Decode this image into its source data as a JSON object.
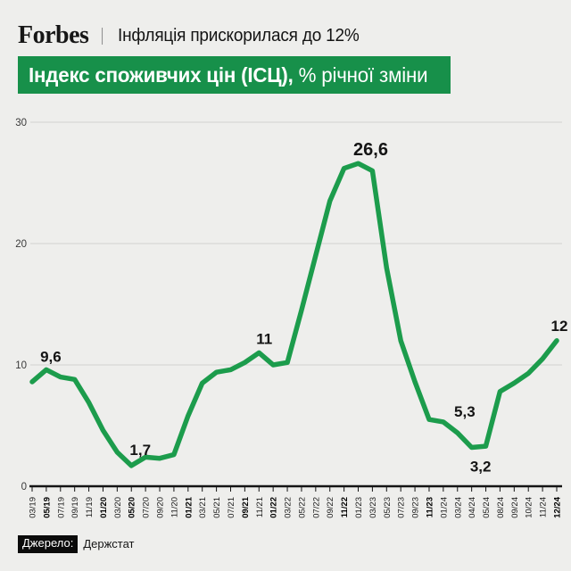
{
  "page": {
    "background": "#eeeeec"
  },
  "header": {
    "brand": "Forbes",
    "divider": "|",
    "headline": "Інфляція прискорилася до 12%"
  },
  "title_banner": {
    "title_bold": "Індекс споживчих цін (ІСЦ),",
    "title_regular": " % річної зміни",
    "background": "#17904a",
    "text_color": "#ffffff"
  },
  "chart_data": {
    "type": "line",
    "title": "Індекс споживчих цін (ІСЦ), % річної зміни",
    "unit": "% річної зміни",
    "line_color": "#1c9c4c",
    "grid": "horizontal",
    "gridline_color": "#d8d8d6",
    "axis_color": "#141414",
    "ylim": [
      0,
      30
    ],
    "yticks": [
      0,
      10,
      20,
      30
    ],
    "categories": [
      "03/19",
      "05/19",
      "07/19",
      "09/19",
      "11/19",
      "01/20",
      "03/20",
      "05/20",
      "07/20",
      "09/20",
      "11/20",
      "01/21",
      "03/21",
      "05/21",
      "07/21",
      "09/21",
      "11/21",
      "01/22",
      "03/22",
      "05/22",
      "07/22",
      "09/22",
      "11/22",
      "01/23",
      "03/23",
      "05/23",
      "07/23",
      "09/23",
      "11/23",
      "01/24",
      "03/24",
      "04/24",
      "05/24",
      "08/24",
      "09/24",
      "10/24",
      "11/24",
      "12/24"
    ],
    "values": [
      8.6,
      9.6,
      9.0,
      8.8,
      6.9,
      4.6,
      2.8,
      1.7,
      2.4,
      2.3,
      2.6,
      5.8,
      8.5,
      9.4,
      9.6,
      10.2,
      11.0,
      10.0,
      10.2,
      14.5,
      19.0,
      23.5,
      26.2,
      26.6,
      26.0,
      18.0,
      12.0,
      8.6,
      5.5,
      5.3,
      4.4,
      3.2,
      3.3,
      7.8,
      8.5,
      9.3,
      10.5,
      12.0
    ],
    "bold_tick_labels": [
      "05/19",
      "01/20",
      "05/20",
      "01/21",
      "09/21",
      "01/22",
      "11/22",
      "11/23",
      "12/24"
    ],
    "callouts": [
      {
        "category": "05/19",
        "value": 9.6,
        "label": "9,6"
      },
      {
        "category": "05/20",
        "value": 1.7,
        "label": "1,7"
      },
      {
        "category": "11/21",
        "value": 11,
        "label": "11"
      },
      {
        "category": "01/23",
        "value": 26.6,
        "label": "26,6"
      },
      {
        "category": "01/24",
        "value": 5.3,
        "label": "5,3"
      },
      {
        "category": "04/24",
        "value": 3.2,
        "label": "3,2"
      },
      {
        "category": "12/24",
        "value": 12,
        "label": "12"
      }
    ]
  },
  "footer": {
    "source_label": "Джерело:",
    "source_value": "Держстат"
  }
}
